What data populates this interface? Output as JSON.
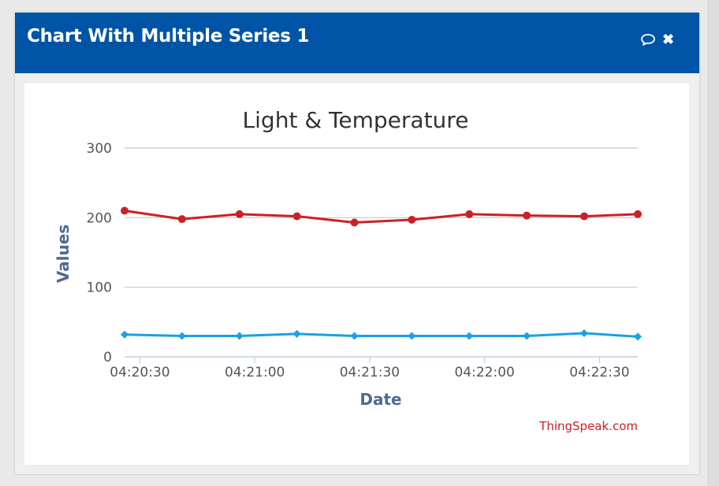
{
  "panel": {
    "title": "Chart With Multiple Series 1",
    "comment_icon": "comment-icon",
    "close_icon": "close-icon",
    "close_glyph": "✖",
    "header_color": "#0054a6"
  },
  "chart_data": {
    "type": "line",
    "title": "Light & Temperature",
    "xlabel": "Date",
    "ylabel": "Values",
    "credit": "ThingSpeak.com",
    "ylim": [
      0,
      300
    ],
    "yticks": [
      0,
      100,
      200,
      300
    ],
    "xlim": [
      "04:20:26",
      "04:22:40"
    ],
    "xticks": [
      "04:20:30",
      "04:21:00",
      "04:21:30",
      "04:22:00",
      "04:22:30"
    ],
    "grid": true,
    "x": [
      "04:20:26",
      "04:20:41",
      "04:20:56",
      "04:21:11",
      "04:21:26",
      "04:21:41",
      "04:21:56",
      "04:22:11",
      "04:22:26",
      "04:22:40"
    ],
    "series": [
      {
        "color": "#cc2027",
        "marker": "circle",
        "values": [
          210,
          198,
          205,
          202,
          193,
          197,
          205,
          203,
          202,
          205
        ]
      },
      {
        "color": "#1aa1e2",
        "marker": "diamond",
        "values": [
          32,
          30,
          30,
          33,
          30,
          30,
          30,
          30,
          34,
          29
        ]
      }
    ]
  }
}
